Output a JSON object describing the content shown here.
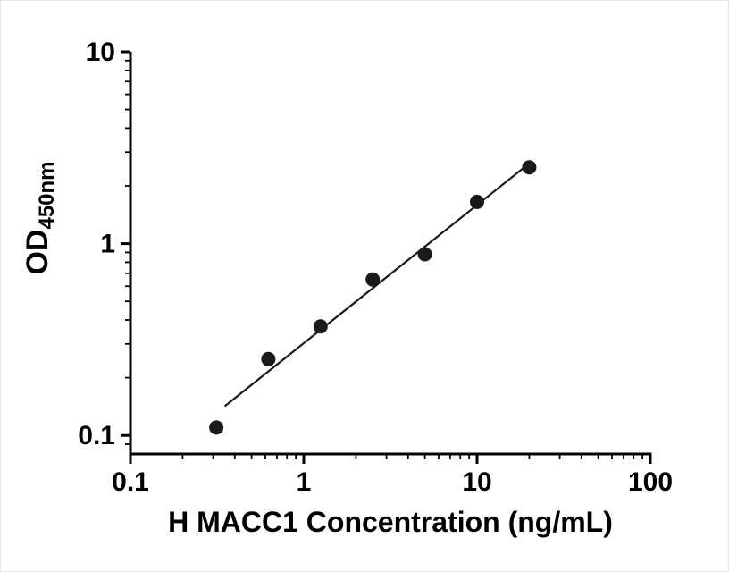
{
  "figure": {
    "kind": "ELISA standard curve",
    "background": "#ffffff"
  },
  "chart_data": {
    "type": "scatter",
    "title": "",
    "xlabel": "H MACC1 Concentration (ng/mL)",
    "ylabel_main": "OD",
    "ylabel_sub": "450nm",
    "x_scale": "log",
    "y_scale": "log",
    "xlim": [
      0.1,
      100
    ],
    "ylim": [
      0.08,
      10
    ],
    "x_ticks": [
      0.1,
      1,
      10,
      100
    ],
    "x_tick_labels": [
      "0.1",
      "1",
      "10",
      "100"
    ],
    "y_ticks": [
      0.1,
      1,
      10
    ],
    "y_tick_labels": [
      "0.1",
      "1",
      "10"
    ],
    "grid": false,
    "legend": false,
    "points": [
      {
        "x": 0.313,
        "y": 0.11
      },
      {
        "x": 0.625,
        "y": 0.25
      },
      {
        "x": 1.25,
        "y": 0.37
      },
      {
        "x": 2.5,
        "y": 0.65
      },
      {
        "x": 5,
        "y": 0.88
      },
      {
        "x": 10,
        "y": 1.65
      },
      {
        "x": 20,
        "y": 2.5
      }
    ],
    "fit_line": {
      "x1": 0.35,
      "y1": 0.142,
      "x2": 20,
      "y2": 2.62
    },
    "marker_color": "#1a1a1a",
    "line_color": "#1a1a1a",
    "axis_color": "#000000",
    "label_color": "#000000"
  }
}
